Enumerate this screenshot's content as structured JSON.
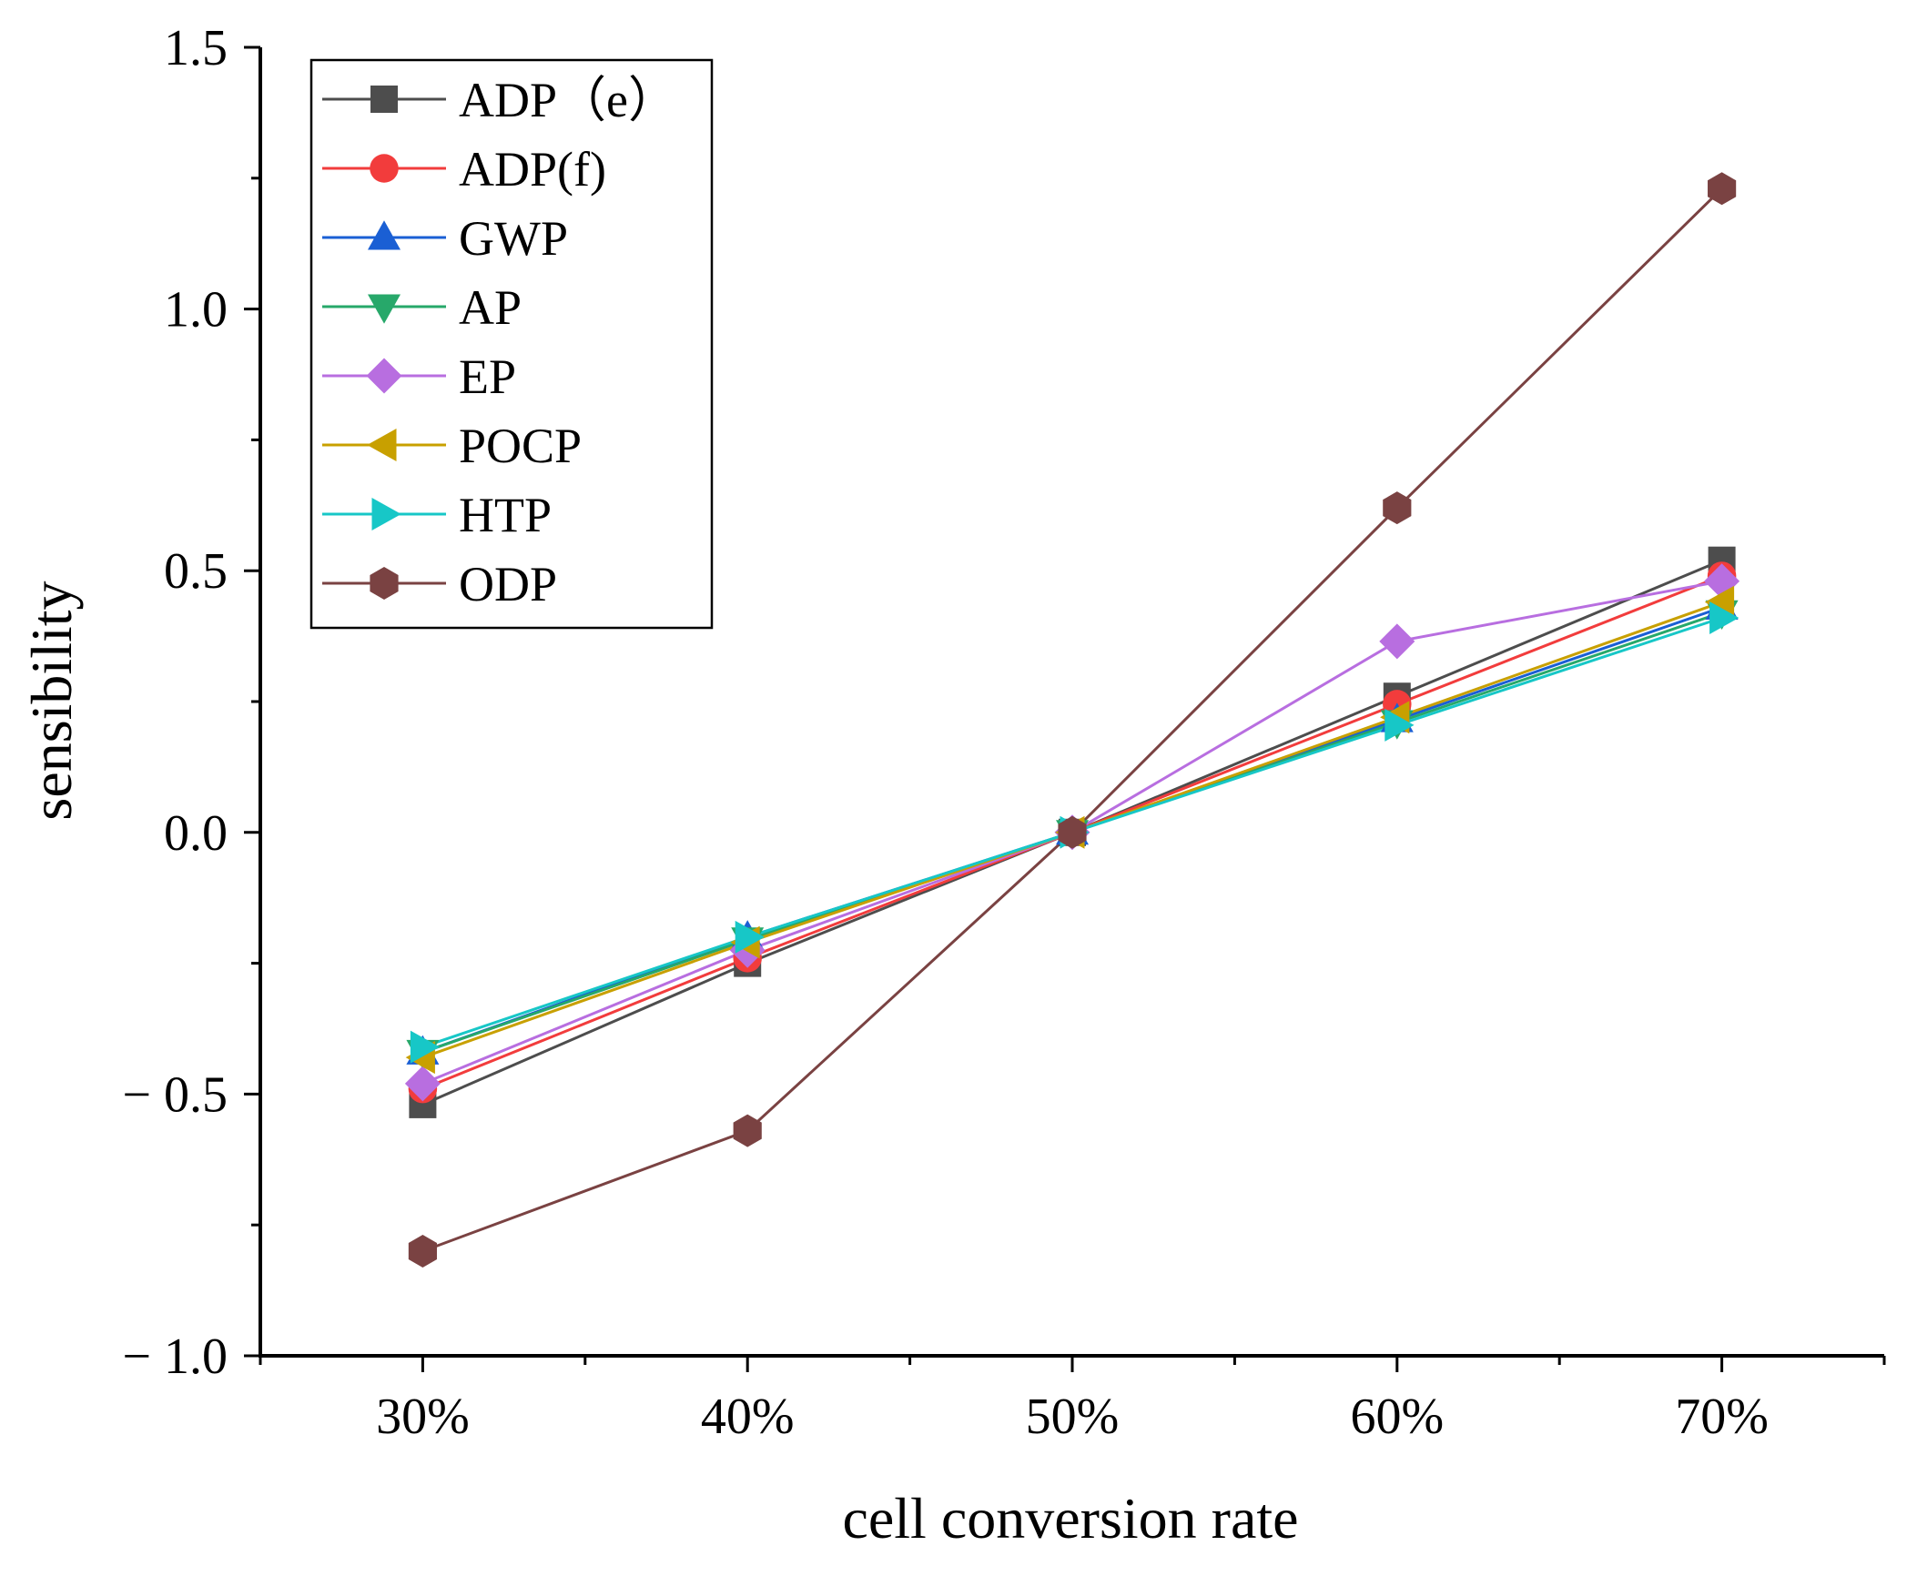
{
  "chart_data": {
    "type": "line",
    "title": "",
    "xlabel": "cell conversion rate",
    "ylabel": "sensibility",
    "categories": [
      "30%",
      "40%",
      "50%",
      "60%",
      "70%"
    ],
    "x": [
      30,
      40,
      50,
      60,
      70
    ],
    "xlim": [
      25,
      75
    ],
    "ylim": [
      -1.0,
      1.5
    ],
    "yticks": [
      -1.0,
      -0.5,
      0.0,
      0.5,
      1.0,
      1.5
    ],
    "ytick_labels": [
      "− 1.0",
      "− 0.5",
      "0.0",
      "0.5",
      "1.0",
      "1.5"
    ],
    "grid": false,
    "legend_position": "top-left",
    "series": [
      {
        "name": "ADP（e）",
        "marker": "square",
        "color": "#4d4d4d",
        "values": [
          -0.52,
          -0.25,
          0.0,
          0.26,
          0.52
        ]
      },
      {
        "name": "ADP(f)",
        "marker": "circle",
        "color": "#f23c3c",
        "values": [
          -0.49,
          -0.24,
          0.0,
          0.245,
          0.49
        ]
      },
      {
        "name": "GWP",
        "marker": "triangle-up",
        "color": "#1a5fd4",
        "values": [
          -0.42,
          -0.2,
          0.0,
          0.215,
          0.43
        ]
      },
      {
        "name": "AP",
        "marker": "triangle-down",
        "color": "#27a86a",
        "values": [
          -0.42,
          -0.205,
          0.0,
          0.21,
          0.42
        ]
      },
      {
        "name": "EP",
        "marker": "diamond",
        "color": "#b86ee0",
        "values": [
          -0.48,
          -0.225,
          0.0,
          0.365,
          0.48
        ]
      },
      {
        "name": "POCP",
        "marker": "triangle-left",
        "color": "#c8a000",
        "values": [
          -0.43,
          -0.21,
          0.0,
          0.22,
          0.44
        ]
      },
      {
        "name": "HTP",
        "marker": "triangle-right",
        "color": "#17c7c7",
        "values": [
          -0.41,
          -0.2,
          0.0,
          0.205,
          0.41
        ]
      },
      {
        "name": "ODP",
        "marker": "hexagon",
        "color": "#7a4242",
        "values": [
          -0.8,
          -0.57,
          0.0,
          0.62,
          1.23
        ]
      }
    ]
  }
}
